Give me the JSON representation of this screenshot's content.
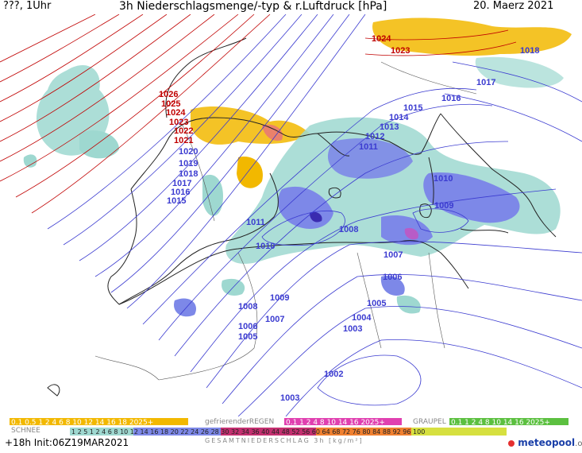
{
  "header": {
    "left": "???, 1Uhr",
    "title": "3h Niederschlagsmenge/-typ & r.Luftdruck [hPa]",
    "date": "20. Maerz 2021"
  },
  "isobars": [
    {
      "v": "1024",
      "c": "#c00000"
    },
    {
      "v": "1023",
      "c": "#c00000"
    },
    {
      "v": "1018",
      "c": "#3b3bd0"
    },
    {
      "v": "1017",
      "c": "#3b3bd0"
    },
    {
      "v": "1016",
      "c": "#3b3bd0"
    },
    {
      "v": "1015",
      "c": "#3b3bd0"
    },
    {
      "v": "1014",
      "c": "#3b3bd0"
    },
    {
      "v": "1013",
      "c": "#3b3bd0"
    },
    {
      "v": "1012",
      "c": "#3b3bd0"
    },
    {
      "v": "1011",
      "c": "#3b3bd0"
    },
    {
      "v": "1026",
      "c": "#c00000"
    },
    {
      "v": "1025",
      "c": "#c00000"
    },
    {
      "v": "1024",
      "c": "#c00000"
    },
    {
      "v": "1023",
      "c": "#c00000"
    },
    {
      "v": "1022",
      "c": "#c00000"
    },
    {
      "v": "1021",
      "c": "#c00000"
    },
    {
      "v": "1020",
      "c": "#3b3bd0"
    },
    {
      "v": "1019",
      "c": "#3b3bd0"
    },
    {
      "v": "1018",
      "c": "#3b3bd0"
    },
    {
      "v": "1017",
      "c": "#3b3bd0"
    },
    {
      "v": "1016",
      "c": "#3b3bd0"
    },
    {
      "v": "1015",
      "c": "#3b3bd0"
    },
    {
      "v": "1011",
      "c": "#3b3bd0"
    },
    {
      "v": "1010",
      "c": "#3b3bd0"
    },
    {
      "v": "1010",
      "c": "#3b3bd0"
    },
    {
      "v": "1009",
      "c": "#3b3bd0"
    },
    {
      "v": "1008",
      "c": "#3b3bd0"
    },
    {
      "v": "1007",
      "c": "#3b3bd0"
    },
    {
      "v": "1006",
      "c": "#3b3bd0"
    },
    {
      "v": "1009",
      "c": "#3b3bd0"
    },
    {
      "v": "1008",
      "c": "#3b3bd0"
    },
    {
      "v": "1007",
      "c": "#3b3bd0"
    },
    {
      "v": "1006",
      "c": "#3b3bd0"
    },
    {
      "v": "1005",
      "c": "#3b3bd0"
    },
    {
      "v": "1005",
      "c": "#3b3bd0"
    },
    {
      "v": "1004",
      "c": "#3b3bd0"
    },
    {
      "v": "1003",
      "c": "#3b3bd0"
    },
    {
      "v": "1002",
      "c": "#3b3bd0"
    },
    {
      "v": "1003",
      "c": "#3b3bd0"
    }
  ],
  "legend": {
    "snow_label": "SCHNEE",
    "snow_values": "0.1 0.5 1 2 4 6 8 10 12 14 16 18 2025+",
    "rain_freezing_label": "gefrierenderREGEN",
    "rain_freezing_values": "0.1 1 2 4 8 10 14 16 2025+",
    "graupel_label": "GRAUPEL",
    "graupel_values": "0.1 1 2 4 8 10 14 16 2025+",
    "total_label": "GESAMTNIEDERSCHLAG 3h [kg/m²]",
    "total_values": "1 2 5 1 2 4 6 8 10 12 14 16 18 20 22 24 26 28 30 32 34 36 40 44 48 52 56 60 64 68 72 76 80 84 88 92 96 100",
    "colors": {
      "snow": "#f2b800",
      "rain_freezing": "#e040b0",
      "graupel": "#5cc040",
      "rain_low": "#9ed8d0",
      "rain_mid": "#7d88e8",
      "rain_high": "#3a2bb0"
    }
  },
  "footer": {
    "run": "+18h Init:06Z19MAR2021",
    "brand": "meteopool",
    "brand_suffix": ".org"
  }
}
